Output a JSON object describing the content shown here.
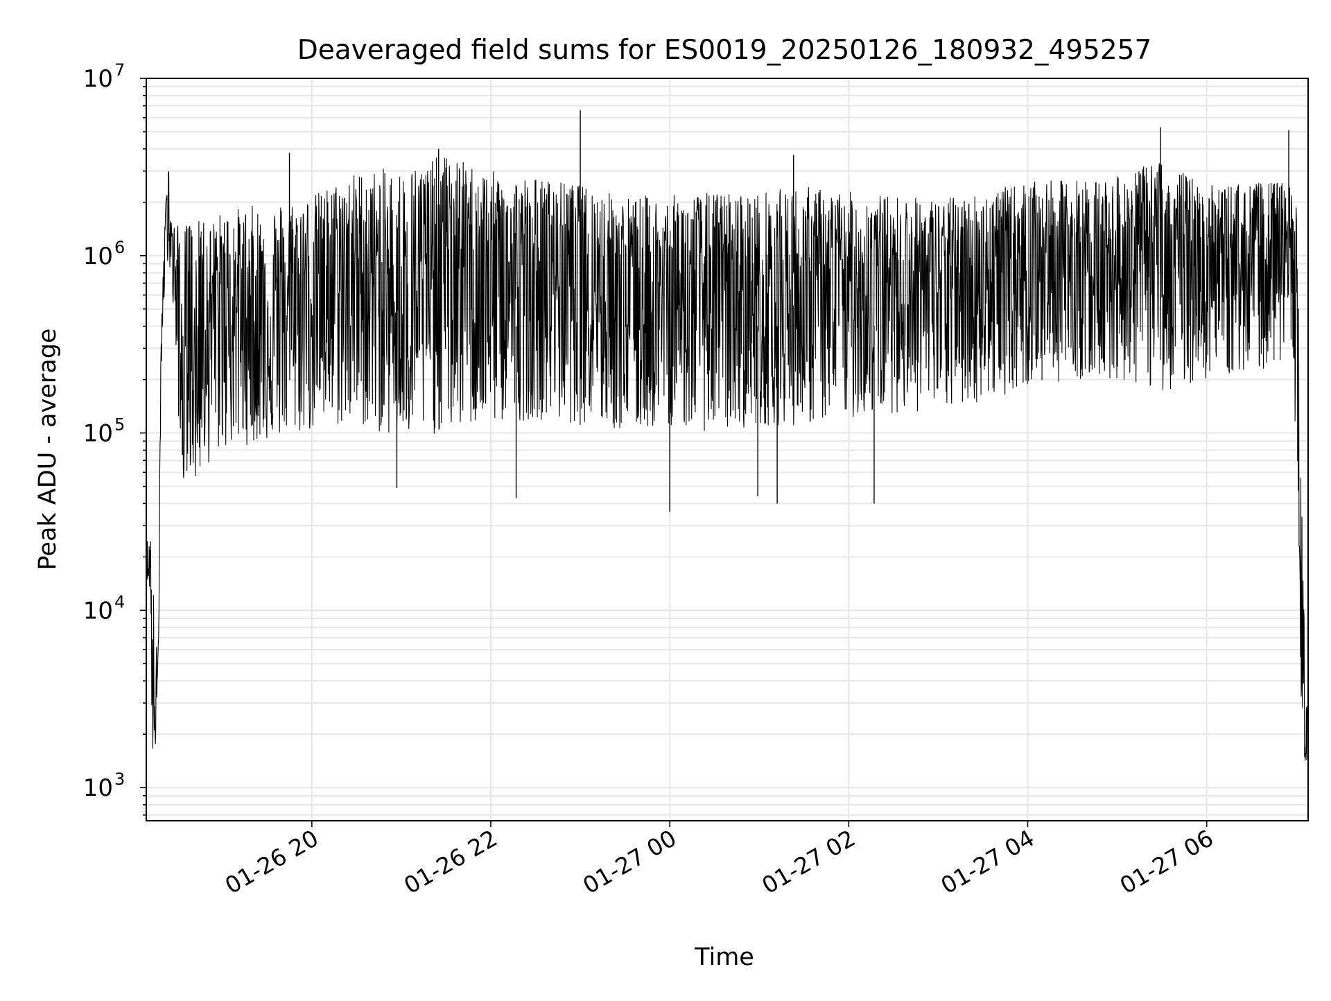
{
  "chart_data": {
    "type": "line",
    "title": "Deaveraged field sums for ES0019_20250126_180932_495257",
    "xlabel": "Time",
    "ylabel": "Peak ADU - average",
    "y_scale": "log",
    "ylim": [
      650,
      10000000
    ],
    "xlim": [
      "2025-01-26 18:09",
      "2025-01-27 07:08"
    ],
    "x_ticks": [
      "2025-01-26 20:00",
      "2025-01-26 22:00",
      "2025-01-27 00:00",
      "2025-01-27 02:00",
      "2025-01-27 04:00",
      "2025-01-27 06:00"
    ],
    "x_tick_labels": [
      "01-26 20",
      "01-26 22",
      "01-27 00",
      "01-27 02",
      "01-27 04",
      "01-27 06"
    ],
    "y_ticks": [
      1000,
      10000,
      100000,
      1000000,
      10000000
    ],
    "y_tick_labels": [
      {
        "base": "10",
        "exp": "3"
      },
      {
        "base": "10",
        "exp": "4"
      },
      {
        "base": "10",
        "exp": "5"
      },
      {
        "base": "10",
        "exp": "6"
      },
      {
        "base": "10",
        "exp": "7"
      }
    ],
    "grid": true,
    "line_color": "#000000",
    "grid_color": "#e6e6e6",
    "series": [
      {
        "x": [
          "2025-01-26 18:09",
          "2025-01-26 18:10",
          "2025-01-26 18:11",
          "2025-01-26 18:12",
          "2025-01-26 18:13",
          "2025-01-26 18:14",
          "2025-01-26 18:15",
          "2025-01-26 18:16",
          "2025-01-26 18:17",
          "2025-01-26 18:18",
          "2025-01-26 18:19",
          "2025-01-26 18:20",
          "2025-01-26 18:22",
          "2025-01-26 18:24",
          "2025-01-26 18:26",
          "2025-01-26 18:28",
          "2025-01-26 18:30",
          "2025-01-26 18:32",
          "2025-01-26 18:34",
          "2025-01-26 18:36",
          "2025-01-26 18:38",
          "2025-01-26 18:40",
          "2025-01-26 18:42",
          "2025-01-26 18:45",
          "2025-01-26 18:50",
          "2025-01-26 19:00",
          "2025-01-26 19:30",
          "2025-01-26 20:00",
          "2025-01-26 20:30",
          "2025-01-26 21:00",
          "2025-01-26 21:30",
          "2025-01-26 22:00",
          "2025-01-26 22:30",
          "2025-01-26 23:00",
          "2025-01-26 23:30",
          "2025-01-27 00:00",
          "2025-01-27 00:30",
          "2025-01-27 01:00",
          "2025-01-27 01:30",
          "2025-01-27 02:00",
          "2025-01-27 02:30",
          "2025-01-27 03:00",
          "2025-01-27 03:30",
          "2025-01-27 04:00",
          "2025-01-27 04:30",
          "2025-01-27 05:00",
          "2025-01-27 05:30",
          "2025-01-27 06:00",
          "2025-01-27 06:30",
          "2025-01-27 06:55",
          "2025-01-27 07:00",
          "2025-01-27 07:02",
          "2025-01-27 07:04",
          "2025-01-27 07:06",
          "2025-01-27 07:08"
        ],
        "y": [
          18000,
          22000,
          15000,
          25000,
          1000,
          8000,
          1700,
          3000,
          6000,
          50000,
          250000,
          600000,
          1500000,
          3100000,
          1200000,
          900000,
          450000,
          200000,
          60000,
          900000,
          1400000,
          300000,
          80000,
          1000000,
          500000,
          600000,
          400000,
          700000,
          900000,
          500000,
          1100000,
          800000,
          700000,
          1200000,
          500000,
          600000,
          700000,
          500000,
          600000,
          700000,
          800000,
          700000,
          800000,
          1000000,
          900000,
          1000000,
          1100000,
          1000000,
          1000000,
          1100000,
          500000,
          30000,
          4000,
          2500,
          1300
        ],
        "envelope_high": [
          25000,
          25000,
          25000,
          25000,
          25000,
          12000,
          9000,
          6000,
          6000,
          60000,
          400000,
          700000,
          2000000,
          3100000,
          1500000,
          1500000,
          1500000,
          1500000,
          1500000,
          1500000,
          1500000,
          1500000,
          1500000,
          1600000,
          1500000,
          1800000,
          2000000,
          2200000,
          3000000,
          3200000,
          3700000,
          3000000,
          2800000,
          2500000,
          2200000,
          2200000,
          2300000,
          2300000,
          2500000,
          2300000,
          2200000,
          2100000,
          2300000,
          2600000,
          2700000,
          2800000,
          3500000,
          2500000,
          2600000,
          2600000,
          2000000,
          500000,
          30000,
          6000,
          4000
        ],
        "envelope_low": [
          15000,
          14000,
          13000,
          14000,
          1000,
          2000,
          1700,
          2200,
          2500,
          30000,
          200000,
          400000,
          800000,
          1000000,
          600000,
          400000,
          150000,
          80000,
          55000,
          60000,
          60000,
          55000,
          55000,
          55000,
          65000,
          80000,
          90000,
          100000,
          110000,
          90000,
          100000,
          110000,
          120000,
          110000,
          100000,
          110000,
          100000,
          110000,
          110000,
          120000,
          130000,
          130000,
          150000,
          180000,
          200000,
          200000,
          170000,
          200000,
          220000,
          250000,
          100000,
          10000,
          1600,
          1400,
          1300
        ]
      }
    ],
    "spikes": [
      {
        "x": "2025-01-26 19:45",
        "y": 3800000
      },
      {
        "x": "2025-01-26 21:25",
        "y": 4000000
      },
      {
        "x": "2025-01-26 23:00",
        "y": 6600000
      },
      {
        "x": "2025-01-27 01:23",
        "y": 3700000
      },
      {
        "x": "2025-01-27 05:29",
        "y": 5300000
      },
      {
        "x": "2025-01-27 06:55",
        "y": 5100000
      }
    ],
    "dips": [
      {
        "x": "2025-01-26 22:17",
        "y": 43000
      },
      {
        "x": "2025-01-27 00:00",
        "y": 36000
      },
      {
        "x": "2025-01-27 00:59",
        "y": 44000
      },
      {
        "x": "2025-01-27 01:12",
        "y": 40000
      },
      {
        "x": "2025-01-27 02:17",
        "y": 40000
      },
      {
        "x": "2025-01-26 20:57",
        "y": 49000
      }
    ]
  }
}
